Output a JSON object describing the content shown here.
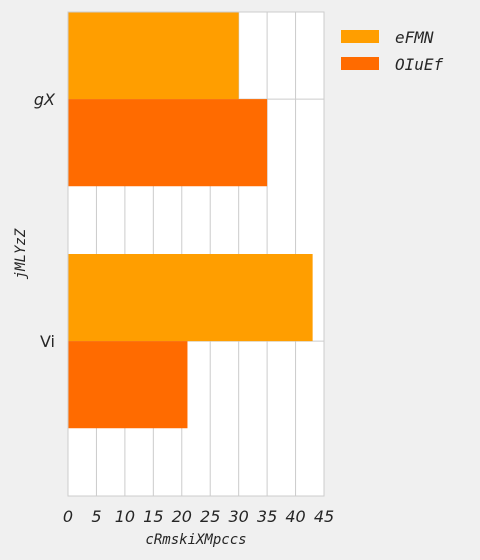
{
  "chart_data": {
    "type": "bar",
    "orientation": "horizontal",
    "categories": [
      "gX",
      "Vi"
    ],
    "series": [
      {
        "name": "eFMN",
        "values": [
          30,
          43
        ],
        "color": "#ff9e00"
      },
      {
        "name": "OIuEf",
        "values": [
          35,
          21
        ],
        "color": "#ff6b00"
      }
    ],
    "xlabel": "cRmskiXMpccs",
    "ylabel": "jMLYzZ",
    "xlim": [
      0,
      45
    ],
    "xticks": [
      "0",
      "5",
      "10",
      "15",
      "20",
      "25",
      "30",
      "35",
      "40",
      "45"
    ],
    "grid": true,
    "legend": "top-right"
  },
  "colors": {
    "background": "#f0f0f0",
    "plot_background": "#ffffff",
    "grid": "#cccccc",
    "text": "#262626"
  }
}
